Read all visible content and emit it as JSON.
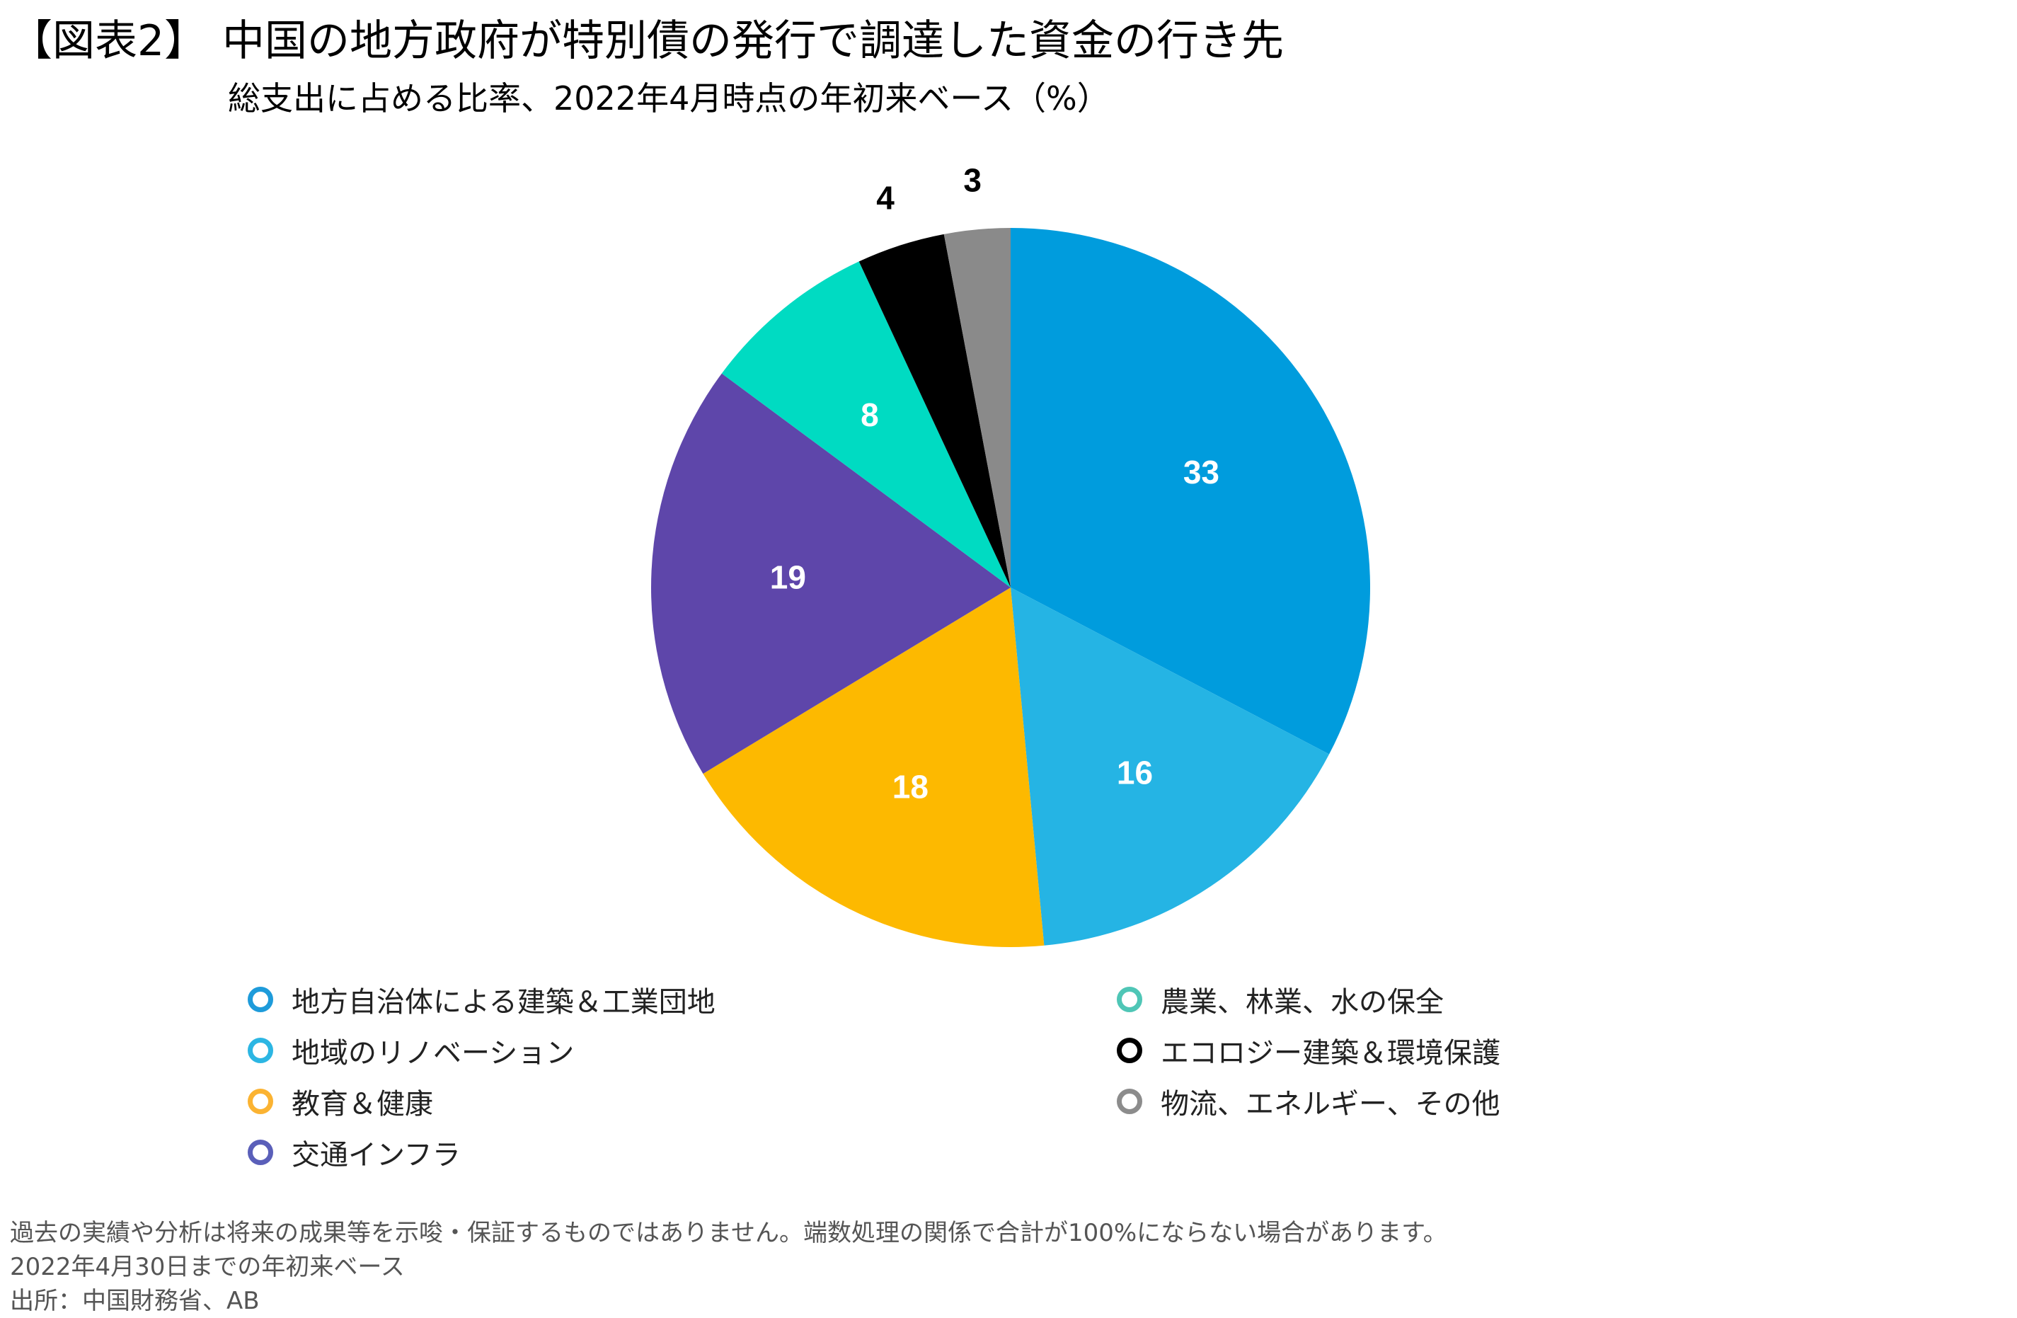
{
  "header": {
    "tag": "【図表2】",
    "title": "中国の地方政府が特別債の発行で調達した資金の行き先",
    "subtitle": "総支出に占める比率、2022年4月時点の年初来ベース（%）"
  },
  "chart_data": {
    "type": "pie",
    "title": "中国の地方政府が特別債の発行で調達した資金の行き先",
    "subtitle": "総支出に占める比率、2022年4月時点の年初来ベース（%）",
    "start_angle": "12 o'clock, clockwise",
    "categories": [
      "地方自治体による建築＆工業団地",
      "地域のリノベーション",
      "教育＆健康",
      "交通インフラ",
      "農業、林業、水の保全",
      "エコロジー建築＆環境保護",
      "物流、エネルギー、その他"
    ],
    "values": [
      33,
      16,
      18,
      19,
      8,
      4,
      3
    ],
    "colors": [
      "#009CDD",
      "#25B4E4",
      "#FDB900",
      "#5E46AA",
      "#00DBC2",
      "#000000",
      "#8A8A8A"
    ],
    "data_labels": [
      "33",
      "16",
      "18",
      "19",
      "8",
      "4",
      "3"
    ],
    "label_positions": [
      "inside",
      "inside",
      "inside",
      "inside",
      "inside",
      "outside",
      "outside"
    ],
    "legend_position": "bottom, two columns",
    "unit": "%"
  },
  "legend": {
    "left": [
      {
        "label": "地方自治体による建築＆工業団地",
        "color": "#1E9BDA"
      },
      {
        "label": "地域のリノベーション",
        "color": "#2CB6E3"
      },
      {
        "label": "教育＆健康",
        "color": "#FBB332"
      },
      {
        "label": "交通インフラ",
        "color": "#5A5FB9"
      }
    ],
    "right": [
      {
        "label": "農業、林業、水の保全",
        "color": "#4FC6B6"
      },
      {
        "label": "エコロジー建築＆環境保護",
        "color": "#000000"
      },
      {
        "label": "物流、エネルギー、その他",
        "color": "#8C8C8C"
      }
    ]
  },
  "notes": {
    "disclaimer": "過去の実績や分析は将来の成果等を示唆・保証するものではありません。端数処理の関係で合計が100%にならない場合があります。",
    "period": "2022年4月30日までの年初来ベース",
    "source": "出所：中国財務省、AB"
  }
}
